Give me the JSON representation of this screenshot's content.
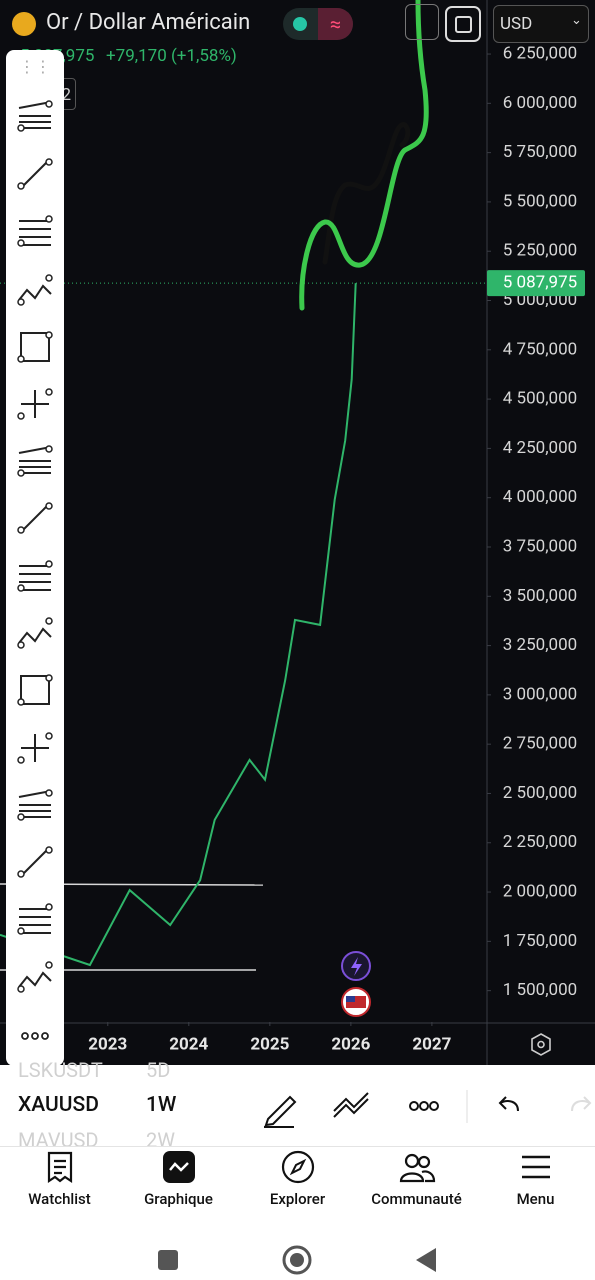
{
  "chart_data": {
    "type": "line",
    "x": [
      2021.67,
      2022.78,
      2023.27,
      2023.77,
      2024.14,
      2024.32,
      2024.75,
      2024.94,
      2025.19,
      2025.31,
      2025.62,
      2025.8,
      2025.93,
      2026.01,
      2026.06
    ],
    "values": [
      1783,
      1630,
      2010,
      1833,
      2060,
      2366,
      2670,
      2570,
      3075,
      3380,
      3355,
      3990,
      4290,
      4600,
      5088
    ],
    "color": "#2fb56a",
    "xlim": [
      2021.67,
      2027.68
    ],
    "xticks": [
      2023,
      2024,
      2025,
      2026,
      2027
    ],
    "ylim": [
      1341,
      6524
    ],
    "yticks": [
      {
        "value": 1500,
        "label": "1 500,000"
      },
      {
        "value": 1750,
        "label": "1 750,000"
      },
      {
        "value": 2000,
        "label": "2 000,000"
      },
      {
        "value": 2250,
        "label": "2 250,000"
      },
      {
        "value": 2500,
        "label": "2 500,000"
      },
      {
        "value": 2750,
        "label": "2 750,000"
      },
      {
        "value": 3000,
        "label": "3 000,000"
      },
      {
        "value": 3250,
        "label": "3 250,000"
      },
      {
        "value": 3500,
        "label": "3 500,000"
      },
      {
        "value": 3750,
        "label": "3 750,000"
      },
      {
        "value": 4000,
        "label": "4 000,000"
      },
      {
        "value": 4250,
        "label": "4 250,000"
      },
      {
        "value": 4500,
        "label": "4 500,000"
      },
      {
        "value": 4750,
        "label": "4 750,000"
      },
      {
        "value": 5000,
        "label": "5 000,000"
      },
      {
        "value": 5250,
        "label": "5 250,000"
      },
      {
        "value": 5500,
        "label": "5 500,000"
      },
      {
        "value": 5750,
        "label": "5 750,000"
      },
      {
        "value": 6000,
        "label": "6 000,000"
      },
      {
        "value": 6250,
        "label": "6 250,000"
      }
    ],
    "last_price": {
      "value": 5087.975,
      "label": "5 087,975"
    },
    "log_scale": false,
    "grid": false
  },
  "header": {
    "title": "Or / Dollar Américain",
    "change": "+79,170 (+1,58%)",
    "currency": "USD",
    "badge": "2"
  },
  "symbols": [
    {
      "symbol": "LSKUSDT",
      "interval": "5D"
    },
    {
      "symbol": "XAUUSD",
      "interval": "1W"
    },
    {
      "symbol": "MAVUSD",
      "interval": "2W"
    }
  ],
  "nav": [
    "Watchlist",
    "Graphique",
    "Explorer",
    "Communauté",
    "Menu"
  ]
}
